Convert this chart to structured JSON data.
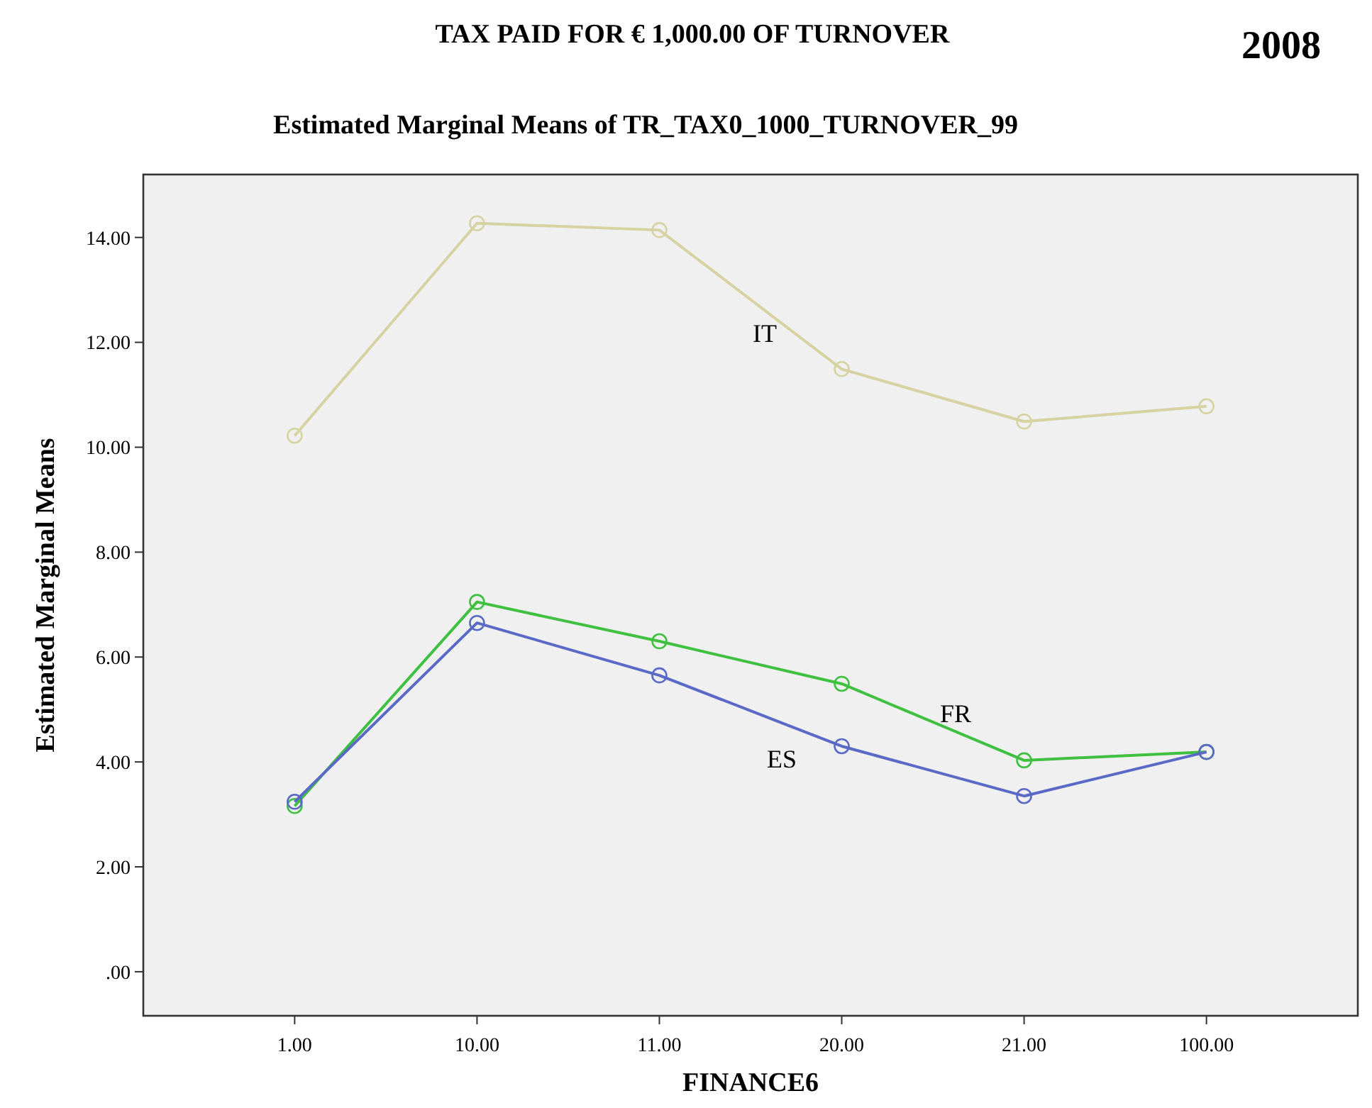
{
  "chart_data": {
    "type": "line",
    "title": "TAX PAID FOR € 1,000.00 OF TURNOVER",
    "subtitle": "Estimated Marginal Means of TR_TAX0_1000_TURNOVER_99",
    "xlabel": "FINANCE6",
    "ylabel": "Estimated Marginal Means",
    "annotations": [
      "2008"
    ],
    "categories": [
      "1.00",
      "10.00",
      "11.00",
      "20.00",
      "21.00",
      "100.00"
    ],
    "series": [
      {
        "name": "IT",
        "color": "#d6d2a2",
        "values": [
          10.22,
          14.27,
          14.14,
          11.49,
          10.49,
          10.78
        ]
      },
      {
        "name": "FR",
        "color": "#3fc040",
        "values": [
          3.16,
          7.05,
          6.3,
          5.49,
          4.03,
          4.19
        ]
      },
      {
        "name": "ES",
        "color": "#5a68c6",
        "values": [
          3.24,
          6.65,
          5.65,
          4.3,
          3.35,
          4.19
        ]
      }
    ],
    "ylim": [
      -0.84,
      15.2
    ],
    "yticks": [
      {
        "value": 0,
        "label": ".00"
      },
      {
        "value": 2,
        "label": "2.00"
      },
      {
        "value": 4,
        "label": "4.00"
      },
      {
        "value": 6,
        "label": "6.00"
      },
      {
        "value": 8,
        "label": "8.00"
      },
      {
        "value": 10,
        "label": "10.00"
      },
      {
        "value": 12,
        "label": "12.00"
      },
      {
        "value": 14,
        "label": "14.00"
      }
    ],
    "grid": false,
    "marker": "circle",
    "line_style": "solid"
  }
}
